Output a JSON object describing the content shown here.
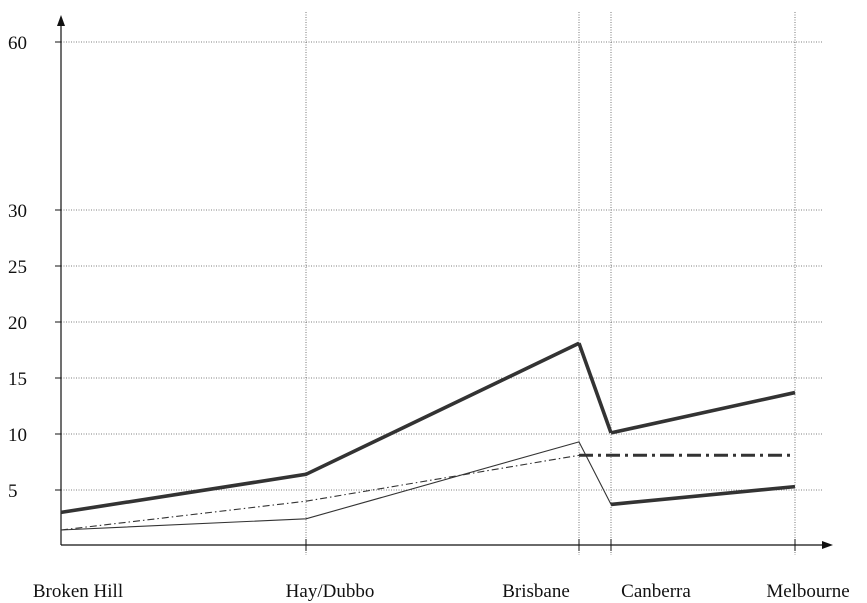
{
  "chart_data": {
    "type": "line",
    "title": "",
    "xlabel": "",
    "ylabel": "",
    "categories": [
      "Broken Hill",
      "Hay/Dubbo",
      "Brisbane",
      "Canberra",
      "Melbourne"
    ],
    "y_ticks": [
      "5",
      "10",
      "15",
      "20",
      "25",
      "30",
      "60"
    ],
    "grid": true,
    "series": [
      {
        "style": "thick-solid",
        "color": "#333333",
        "segments": [
          {
            "x": [
              "Broken Hill",
              "Hay/Dubbo",
              "Brisbane"
            ],
            "y": [
              2.2,
              6.4,
              18.1
            ]
          },
          {
            "x": [
              "Brisbane",
              "Canberra"
            ],
            "y": [
              18.1,
              10.1
            ]
          },
          {
            "x": [
              "Canberra",
              "Melbourne"
            ],
            "y": [
              10.1,
              13.7
            ]
          },
          {
            "x": [
              "Canberra",
              "Melbourne"
            ],
            "y": [
              3.2,
              5.3
            ]
          }
        ]
      },
      {
        "style": "thin-solid",
        "color": "#333333",
        "segments": [
          {
            "x": [
              "Broken Hill",
              "Hay/Dubbo",
              "Brisbane",
              "Canberra"
            ],
            "y": [
              0,
              1.4,
              9.3,
              3.2
            ]
          }
        ]
      },
      {
        "style": "thin-dash-dot",
        "color": "#333333",
        "segments": [
          {
            "x": [
              "Broken Hill",
              "Hay/Dubbo",
              "Brisbane"
            ],
            "y": [
              0,
              3.6,
              8.1
            ]
          }
        ]
      },
      {
        "style": "thick-dash-dot",
        "color": "#333333",
        "segments": [
          {
            "x": [
              "Brisbane",
              "Melbourne"
            ],
            "y": [
              8.1,
              8.1
            ]
          }
        ]
      }
    ]
  }
}
